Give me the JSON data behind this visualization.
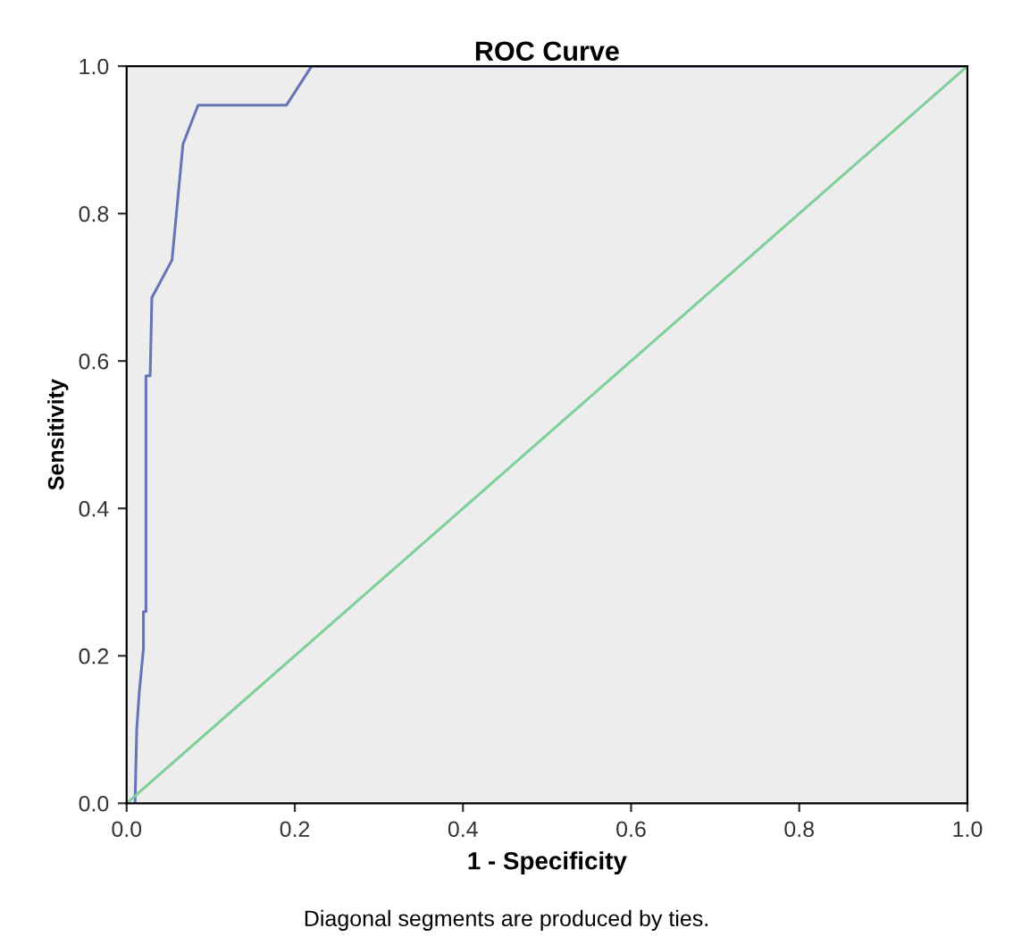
{
  "chart_data": {
    "type": "line",
    "title": "ROC Curve",
    "xlabel": "1 - Specificity",
    "ylabel": "Sensitivity",
    "xlim": [
      0.0,
      1.0
    ],
    "ylim": [
      0.0,
      1.0
    ],
    "xticks": [
      {
        "value": 0,
        "label": "0.0"
      },
      0.2,
      0.4,
      0.6,
      0.8,
      {
        "value": 1,
        "label": "1.0"
      }
    ],
    "yticks": [
      {
        "value": 0,
        "label": "0.0"
      },
      0.2,
      0.4,
      0.6,
      0.8,
      {
        "value": 1,
        "label": "1.0"
      }
    ],
    "grid": false,
    "marker": "none",
    "line_style": "solid",
    "series": [
      {
        "color": "#6674b8",
        "x": [
          0.01,
          0.012,
          0.015,
          0.02,
          0.02,
          0.023,
          0.023,
          0.028,
          0.03,
          0.054,
          0.067,
          0.085,
          0.19,
          0.22,
          1.0
        ],
        "values": [
          0.0,
          0.1,
          0.15,
          0.21,
          0.26,
          0.26,
          0.58,
          0.58,
          0.686,
          0.737,
          0.894,
          0.947,
          0.947,
          1.0,
          1.0
        ]
      },
      {
        "color": "#7fcf9a",
        "x": [
          0.0,
          1.0
        ],
        "values": [
          0.0,
          1.0
        ]
      }
    ],
    "annotations": [
      "Diagonal segments are produced by ties."
    ]
  }
}
